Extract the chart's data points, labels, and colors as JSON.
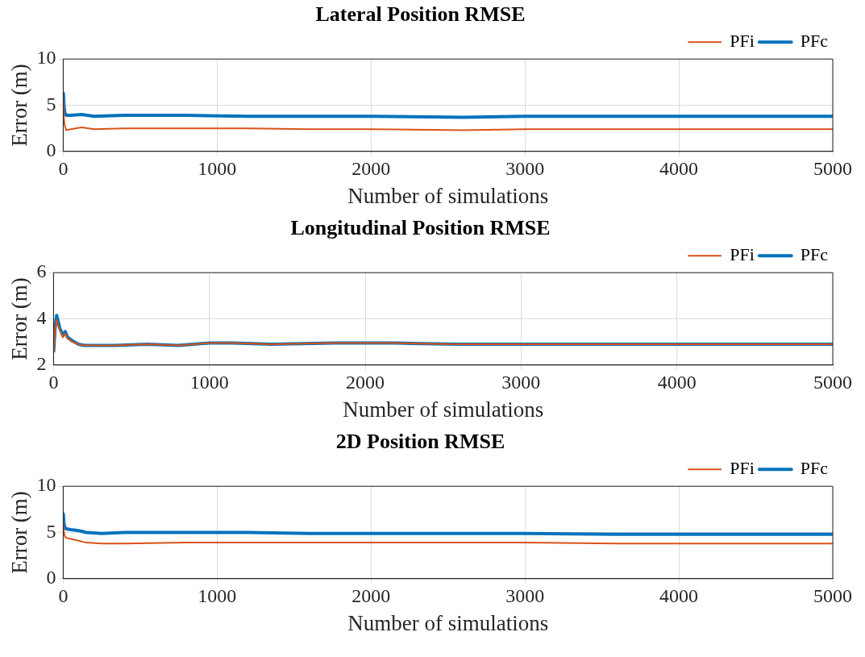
{
  "chart_data": [
    {
      "type": "line",
      "title": "Lateral Position RMSE",
      "xlabel": "Number of simulations",
      "ylabel": "Error (m)",
      "xlim": [
        0,
        5000
      ],
      "xticks": [
        0,
        1000,
        2000,
        3000,
        4000,
        5000
      ],
      "ylim": [
        0,
        10
      ],
      "yticks": [
        0,
        5,
        10
      ],
      "grid": true,
      "legend": "top right",
      "marker": "none",
      "line_style": "solid",
      "series": [
        {
          "name": "PFc",
          "color": "#0072bd",
          "x": [
            1,
            5,
            10,
            20,
            50,
            120,
            200,
            400,
            800,
            1200,
            1600,
            2000,
            2600,
            3000,
            3600,
            4000,
            4600,
            5000
          ],
          "values": [
            6.3,
            5.0,
            4.2,
            3.9,
            3.9,
            4.0,
            3.8,
            3.9,
            3.9,
            3.8,
            3.8,
            3.8,
            3.7,
            3.8,
            3.8,
            3.8,
            3.8,
            3.8
          ]
        },
        {
          "name": "PFi",
          "color": "#d95319",
          "x": [
            1,
            5,
            10,
            20,
            50,
            120,
            200,
            400,
            800,
            1200,
            1600,
            2000,
            2600,
            3000,
            3600,
            4000,
            4600,
            5000
          ],
          "values": [
            5.5,
            3.5,
            2.8,
            2.3,
            2.4,
            2.6,
            2.4,
            2.5,
            2.5,
            2.5,
            2.4,
            2.4,
            2.3,
            2.4,
            2.4,
            2.4,
            2.4,
            2.4
          ]
        }
      ]
    },
    {
      "type": "line",
      "title": "Longitudinal Position RMSE",
      "xlabel": "Number of simulations",
      "ylabel": "Error (m)",
      "xlim": [
        0,
        5000
      ],
      "xticks": [
        0,
        1000,
        2000,
        3000,
        4000,
        5000
      ],
      "ylim": [
        2,
        6
      ],
      "yticks": [
        2,
        4,
        6
      ],
      "grid": true,
      "legend": "top right",
      "marker": "none",
      "line_style": "solid",
      "series": [
        {
          "name": "PFc",
          "color": "#0072bd",
          "x": [
            1,
            10,
            20,
            40,
            60,
            75,
            90,
            120,
            160,
            200,
            300,
            400,
            600,
            800,
            1000,
            1150,
            1400,
            1800,
            2200,
            2600,
            3000,
            3500,
            4000,
            4500,
            5000
          ],
          "values": [
            2.6,
            3.6,
            4.15,
            3.6,
            3.3,
            3.45,
            3.2,
            3.05,
            2.9,
            2.85,
            2.85,
            2.85,
            2.9,
            2.85,
            2.95,
            2.95,
            2.9,
            2.95,
            2.95,
            2.9,
            2.9,
            2.9,
            2.9,
            2.9,
            2.9
          ]
        },
        {
          "name": "PFi",
          "color": "#d95319",
          "x": [
            1,
            10,
            20,
            40,
            60,
            75,
            90,
            120,
            160,
            200,
            300,
            400,
            600,
            800,
            1000,
            1150,
            1400,
            1800,
            2200,
            2600,
            3000,
            3500,
            4000,
            4500,
            5000
          ],
          "values": [
            2.6,
            3.5,
            3.95,
            3.5,
            3.2,
            3.35,
            3.15,
            3.0,
            2.9,
            2.85,
            2.85,
            2.85,
            2.9,
            2.85,
            2.95,
            2.95,
            2.9,
            2.95,
            2.95,
            2.9,
            2.9,
            2.9,
            2.9,
            2.9,
            2.9
          ]
        }
      ]
    },
    {
      "type": "line",
      "title": "2D Position RMSE",
      "xlabel": "Number of simulations",
      "ylabel": "Error (m)",
      "xlim": [
        0,
        5000
      ],
      "xticks": [
        0,
        1000,
        2000,
        3000,
        4000,
        5000
      ],
      "ylim": [
        0,
        10
      ],
      "yticks": [
        0,
        5,
        10
      ],
      "grid": true,
      "legend": "top right",
      "marker": "none",
      "line_style": "solid",
      "series": [
        {
          "name": "PFc",
          "color": "#0072bd",
          "x": [
            1,
            5,
            10,
            20,
            50,
            100,
            150,
            250,
            400,
            800,
            1200,
            1600,
            2000,
            2600,
            3000,
            3600,
            4000,
            4600,
            5000
          ],
          "values": [
            7.0,
            6.0,
            5.6,
            5.4,
            5.3,
            5.2,
            5.0,
            4.9,
            5.0,
            5.0,
            5.0,
            4.9,
            4.9,
            4.9,
            4.9,
            4.8,
            4.8,
            4.8,
            4.8
          ]
        },
        {
          "name": "PFi",
          "color": "#d95319",
          "x": [
            1,
            5,
            10,
            20,
            50,
            100,
            150,
            250,
            400,
            800,
            1200,
            1600,
            2000,
            2600,
            3000,
            3600,
            4000,
            4600,
            5000
          ],
          "values": [
            6.0,
            5.0,
            4.6,
            4.4,
            4.3,
            4.1,
            3.9,
            3.8,
            3.8,
            3.9,
            3.9,
            3.9,
            3.9,
            3.9,
            3.9,
            3.8,
            3.8,
            3.8,
            3.8
          ]
        }
      ]
    }
  ]
}
